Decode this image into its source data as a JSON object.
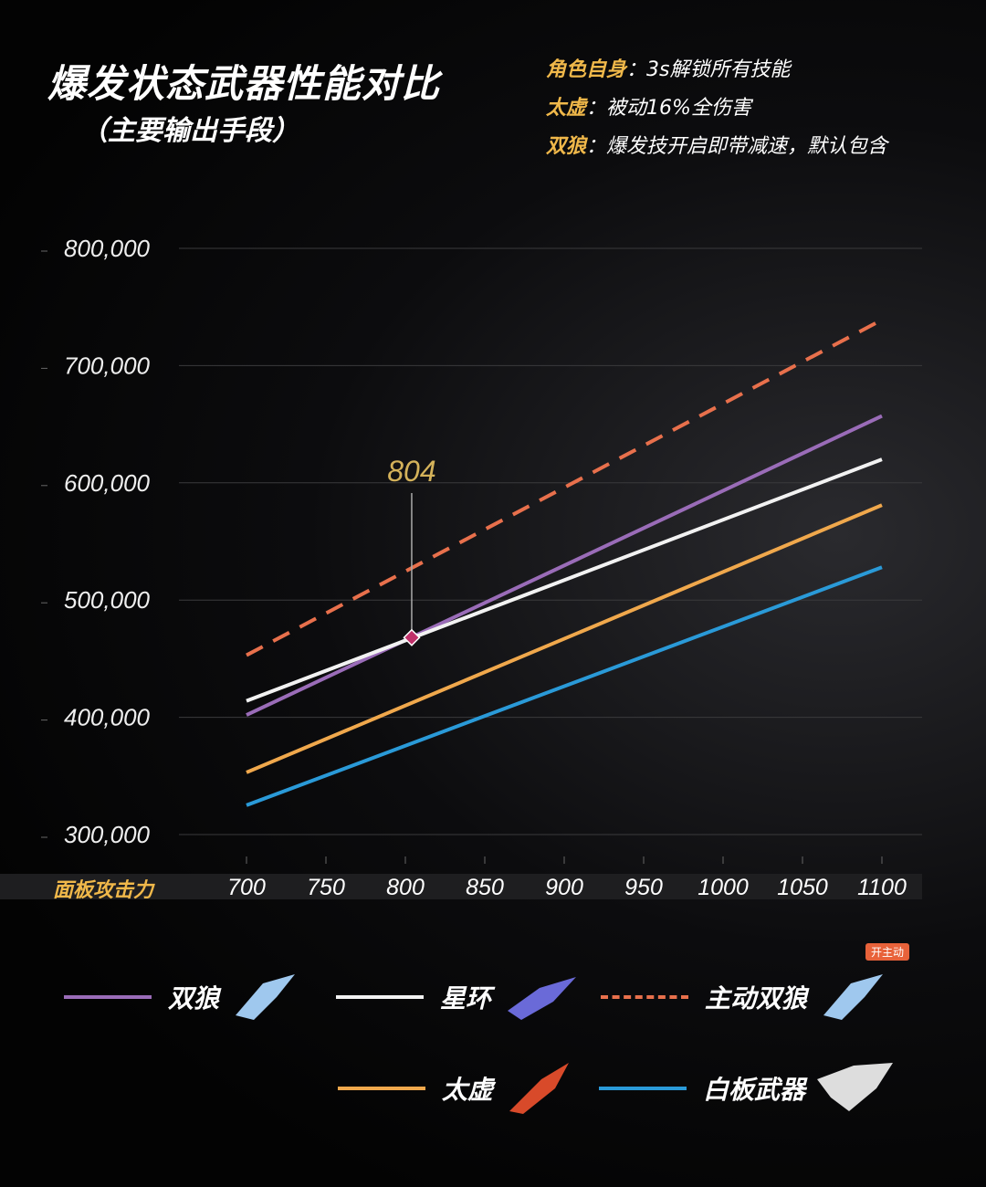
{
  "title": "爆发状态武器性能对比",
  "subtitle": "（主要输出手段）",
  "notes": [
    {
      "key": "角色自身",
      "text": "：3s解锁所有技能"
    },
    {
      "key": "太虚",
      "text": "：被动16%全伤害"
    },
    {
      "key": "双狼",
      "text": "：爆发技开启即带减速，默认包含"
    }
  ],
  "badge": "开主动",
  "chart_data": {
    "type": "line",
    "title": "爆发状态武器性能对比",
    "xlabel": "面板攻击力",
    "ylabel": "",
    "x": [
      700,
      1100
    ],
    "xticks": [
      "700",
      "750",
      "800",
      "850",
      "900",
      "950",
      "1000",
      "1050",
      "1100"
    ],
    "yticks": [
      "300,000",
      "400,000",
      "500,000",
      "600,000",
      "700,000",
      "800,000"
    ],
    "xlim": [
      700,
      1100
    ],
    "ylim": [
      300000,
      800000
    ],
    "grid": true,
    "legend": "bottom",
    "series": [
      {
        "name": "双狼",
        "values": [
          402000,
          657000
        ],
        "color": "#9a6cb8",
        "dash": false
      },
      {
        "name": "星环",
        "values": [
          414000,
          620000
        ],
        "color": "#f2f2f2",
        "dash": false
      },
      {
        "name": "主动双狼",
        "values": [
          453000,
          739000
        ],
        "color": "#e8704c",
        "dash": true
      },
      {
        "name": "太虚",
        "values": [
          353000,
          581000
        ],
        "color": "#f0a84c",
        "dash": false
      },
      {
        "name": "白板武器",
        "values": [
          325000,
          528000
        ],
        "color": "#2a9ad8",
        "dash": false
      }
    ],
    "annotation": {
      "label": "804",
      "x": 804,
      "y": 468000,
      "color": "#d4b25a"
    }
  }
}
